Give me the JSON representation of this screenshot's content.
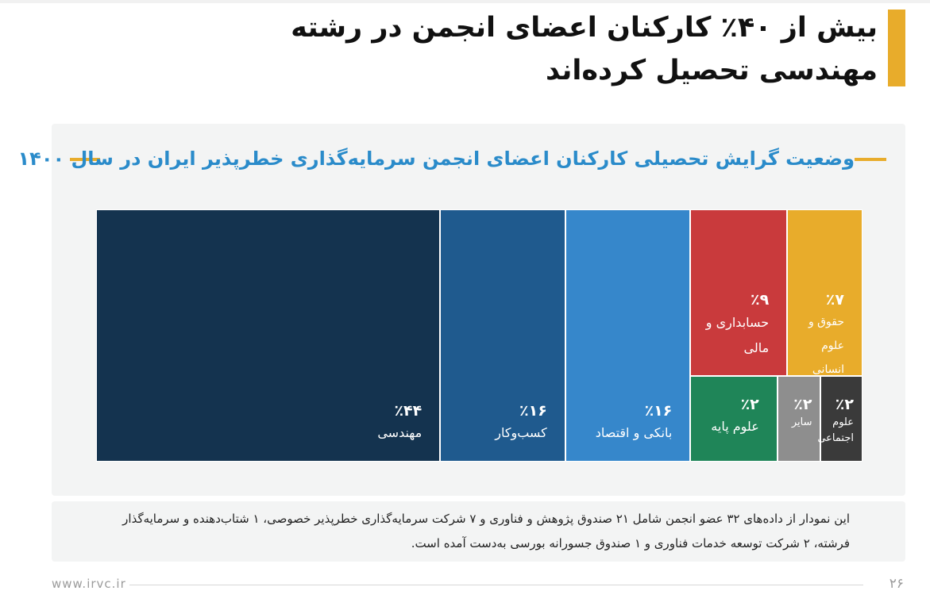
{
  "page": {
    "title": "بیش از ۴۰٪ کارکنان اعضای انجمن در رشته مهندسی تحصیل کرده‌اند",
    "subtitle": "وضعیت گرایش تحصیلی کارکنان اعضای انجمن سرمایه‌گذاری خطرپذیر ایران در سال ۱۴۰۰",
    "note": "این نمودار از داده‌های ۳۲ عضو انجمن شامل ۲۱ صندوق پژوهش و فناوری و ۷ شرکت سرمایه‌گذاری خطرپذیر خصوصی، ۱ شتاب‌دهنده و سرمایه‌گذار فرشته، ۲ شرکت توسعه خدمات فناوری و ۱ صندوق جسورانه بورسی به‌دست آمده است.",
    "footer_url": "www.irvc.ir",
    "page_number": "۲۶",
    "accent_color": "#e8ac2b",
    "subtitle_color": "#2a8bca"
  },
  "chart_data": {
    "type": "treemap",
    "unit": "%",
    "items": [
      {
        "label": "مهندسی",
        "value": 44,
        "value_label": "٪۴۴",
        "color": "#14334f"
      },
      {
        "label": "کسب‌وکار",
        "value": 16,
        "value_label": "٪۱۶",
        "color": "#1f5a8e"
      },
      {
        "label": "بانکی و اقتصاد",
        "value": 16,
        "value_label": "٪۱۶",
        "color": "#3687cb"
      },
      {
        "label": "حسابداری و مالی",
        "value": 9,
        "value_label": "٪۹",
        "color": "#c93a3c"
      },
      {
        "label": "حقوق و علوم انسانی",
        "value": 7,
        "value_label": "٪۷",
        "color": "#e8ac2b"
      },
      {
        "label": "علوم پایه",
        "value": 2,
        "value_label": "٪۲",
        "color": "#1f8558"
      },
      {
        "label": "سایر",
        "value": 2,
        "value_label": "٪۲",
        "color": "#8e8e8e"
      },
      {
        "label": "علوم اجتماعی",
        "value": 2,
        "value_label": "٪۲",
        "color": "#3a3a3a"
      }
    ]
  }
}
